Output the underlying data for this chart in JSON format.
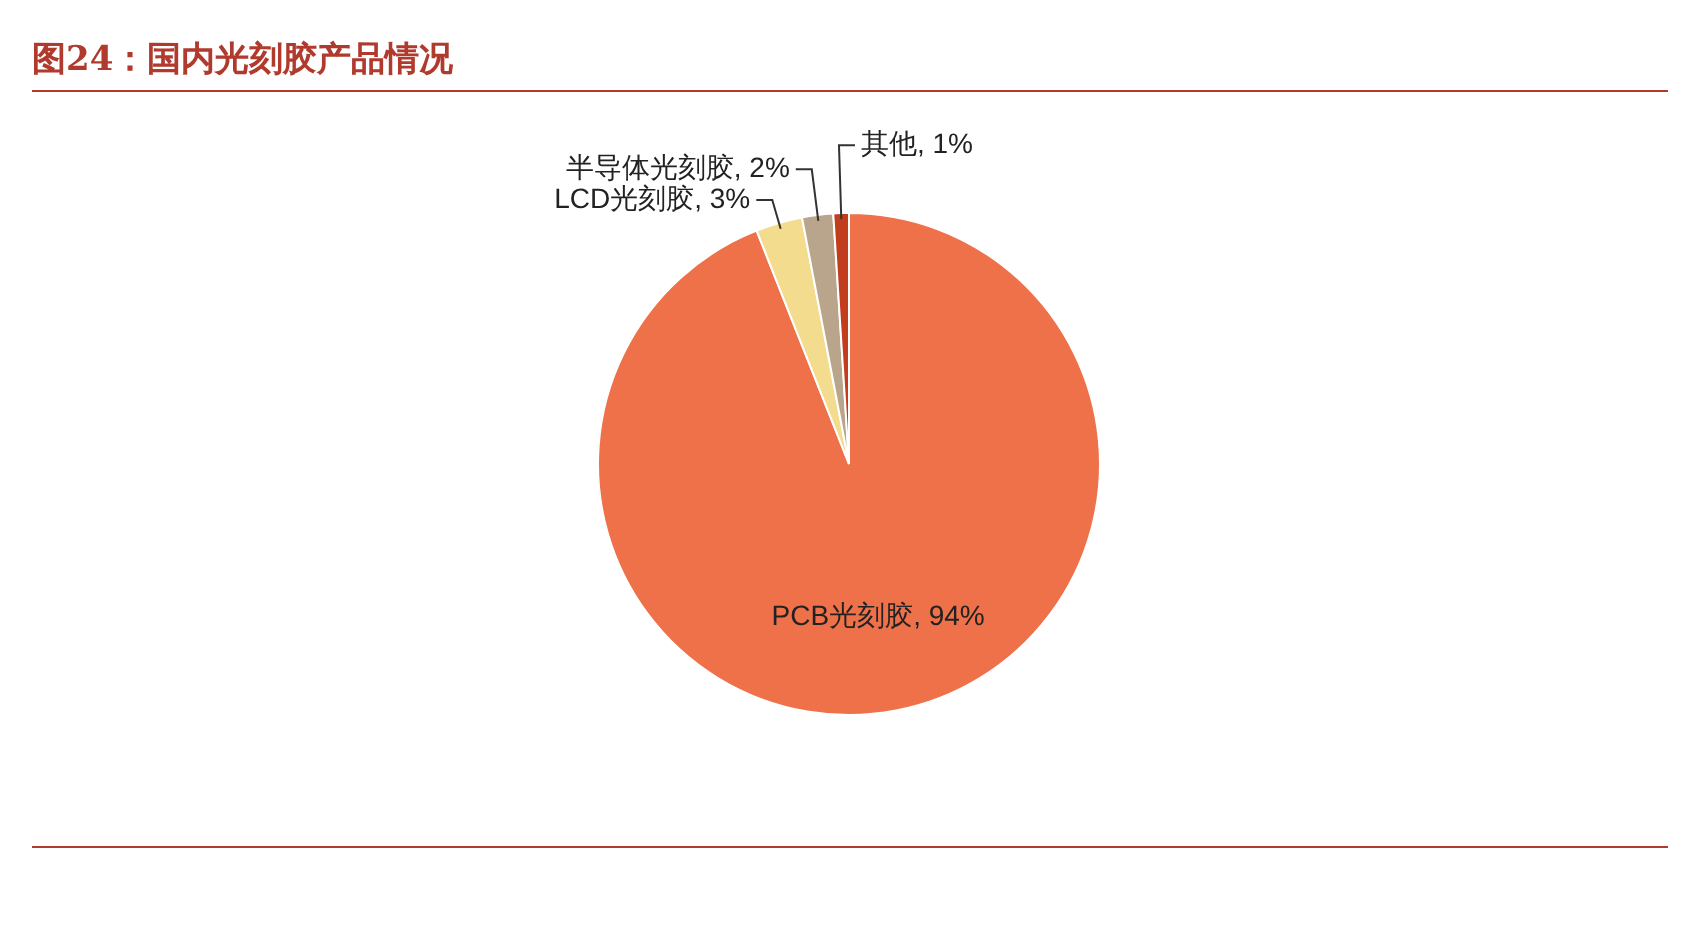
{
  "chart_data": {
    "type": "pie",
    "title": "图24：国内光刻胶产品情况",
    "categories": [
      "PCB光刻胶",
      "LCD光刻胶",
      "半导体光刻胶",
      "其他"
    ],
    "values": [
      94,
      3,
      2,
      1
    ],
    "value_labels": [
      "94%",
      "3%",
      "2%",
      "1%"
    ],
    "colors": [
      "#ee714a",
      "#f4dc8e",
      "#b9a58b",
      "#c23c1e"
    ],
    "legend": false
  }
}
